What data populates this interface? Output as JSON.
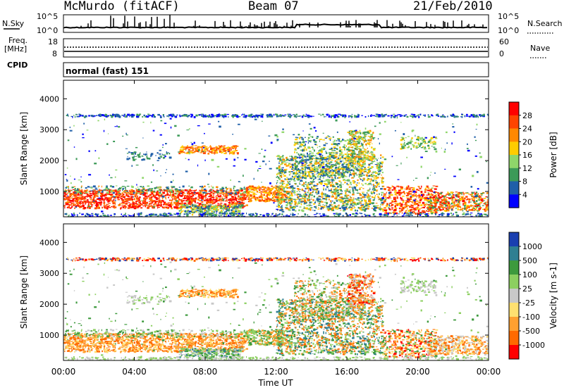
{
  "header": {
    "station": "McMurdo (fitACF)",
    "beam": "Beam 07",
    "date": "21/Feb/2010"
  },
  "top_panels": {
    "nsky_label": "N.Sky",
    "nsky_ticks": [
      "10^5",
      "10^0"
    ],
    "nsearch_label": "N.Search",
    "nsearch_ticks": [
      "10^5",
      "10^0"
    ],
    "freq_label_1": "Freq.",
    "freq_label_2": "[MHz]",
    "freq_ticks": [
      "18",
      "8"
    ],
    "nave_label": "Nave",
    "nave_ticks": [
      "60",
      "0"
    ],
    "cpid_label": "CPID",
    "cpid_text": "normal (fast) 151"
  },
  "chart_data": [
    {
      "type": "heatmap",
      "name": "power",
      "ylabel": "Slant Range [km]",
      "yticks": [
        "1000",
        "2000",
        "3000",
        "4000"
      ],
      "ylim": [
        180,
        4600
      ],
      "xlim": [
        "00:00",
        "24:00"
      ],
      "colorbar_label": "Power [dB]",
      "colorbar_ticks": [
        "28",
        "24",
        "20",
        "16",
        "12",
        "8",
        "4"
      ],
      "colorbar_colors": [
        "#ff0000",
        "#ff4400",
        "#ff8800",
        "#ffcc00",
        "#8fd66a",
        "#3c9a58",
        "#1f5fa8",
        "#0000ff"
      ],
      "colorbar_range": [
        0,
        32
      ]
    },
    {
      "type": "heatmap",
      "name": "velocity",
      "ylabel": "Slant Range [km]",
      "yticks": [
        "1000",
        "2000",
        "3000",
        "4000"
      ],
      "ylim": [
        180,
        4600
      ],
      "xlim": [
        "00:00",
        "24:00"
      ],
      "xlabel": "Time UT",
      "xticks": [
        "00:00",
        "04:00",
        "08:00",
        "12:00",
        "16:00",
        "20:00",
        "00:00"
      ],
      "colorbar_label": "Velocity [m s-1]",
      "colorbar_ticks": [
        "1000",
        "500",
        "100",
        "25",
        "-25",
        "-100",
        "-500",
        "-1000"
      ],
      "colorbar_colors": [
        "#1a3fb0",
        "#2f7f92",
        "#3d9a3d",
        "#8ccf60",
        "#c8c8c8",
        "#ffe070",
        "#ffa030",
        "#ff6a00",
        "#ff0000"
      ]
    }
  ]
}
